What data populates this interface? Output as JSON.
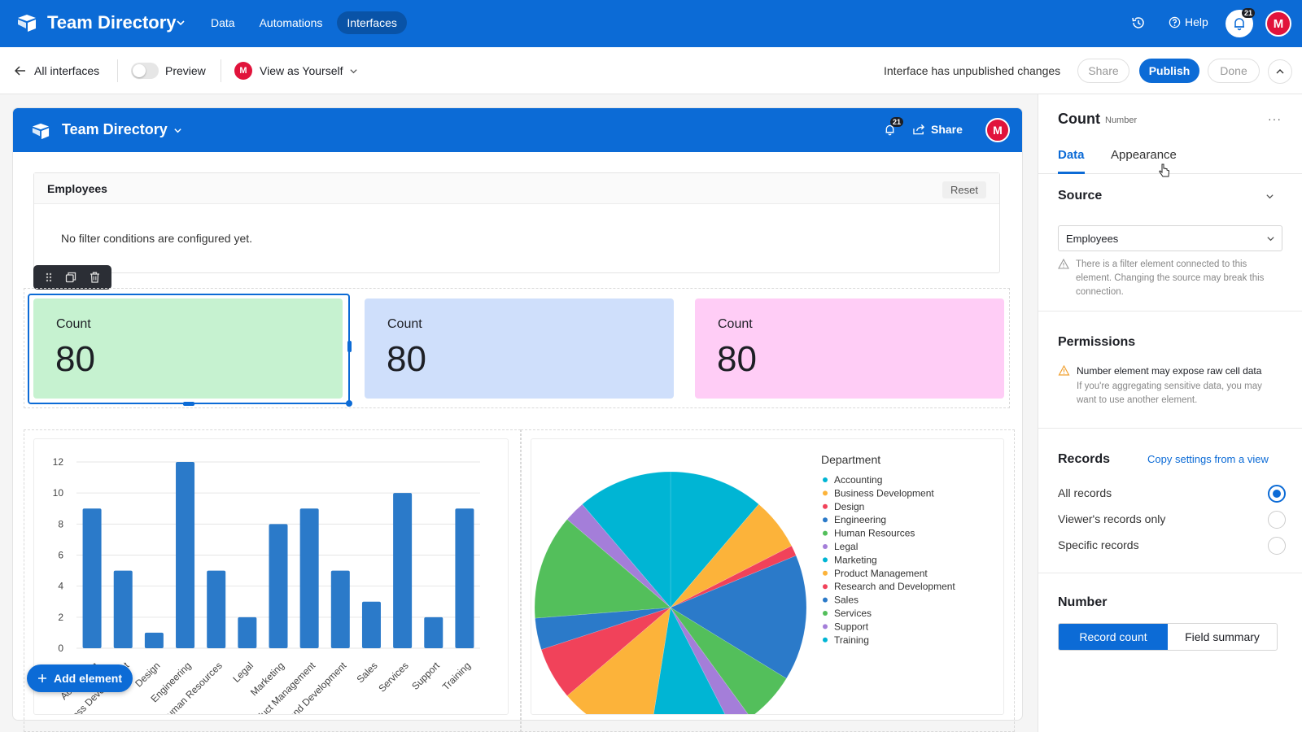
{
  "app": {
    "title": "Team Directory",
    "nav": [
      {
        "label": "Data",
        "active": false
      },
      {
        "label": "Automations",
        "active": false
      },
      {
        "label": "Interfaces",
        "active": true
      }
    ],
    "help_label": "Help",
    "notification_count": "21",
    "user_initial": "M"
  },
  "subbar": {
    "back_label": "All interfaces",
    "preview_label": "Preview",
    "view_as_label": "View as Yourself",
    "status_text": "Interface has unpublished changes",
    "share_label": "Share",
    "publish_label": "Publish",
    "done_label": "Done"
  },
  "canvas": {
    "title": "Team Directory",
    "notification_count": "21",
    "share_label": "Share",
    "user_initial": "M",
    "filter": {
      "title": "Employees",
      "reset_label": "Reset",
      "empty_text": "No filter conditions are configured yet."
    },
    "counts": [
      {
        "label": "Count",
        "value": "80",
        "color": "#c6f2d0"
      },
      {
        "label": "Count",
        "value": "80",
        "color": "#cfdffb"
      },
      {
        "label": "Count",
        "value": "80",
        "color": "#ffcdf6"
      }
    ],
    "add_element_label": "Add element"
  },
  "chart_data": [
    {
      "type": "bar",
      "categories": [
        "Accounting",
        "Business Development",
        "Design",
        "Engineering",
        "Human Resources",
        "Legal",
        "Marketing",
        "Product Management",
        "Research and Development",
        "Sales",
        "Services",
        "Support",
        "Training"
      ],
      "x_tick_labels": [
        "Accounting",
        "Business Development",
        "Design",
        "Engineering",
        "Human Resources",
        "Legal",
        "Marketing",
        "Product Management",
        "Research and Development",
        "Sales",
        "Services",
        "Support",
        "Training"
      ],
      "values": [
        9,
        5,
        1,
        12,
        5,
        2,
        8,
        9,
        5,
        3,
        10,
        2,
        9
      ],
      "ylim": [
        0,
        12
      ],
      "yticks": [
        0,
        2,
        4,
        6,
        8,
        10,
        12
      ],
      "color": "#2b7ac9",
      "grid": true
    },
    {
      "type": "pie",
      "legend_title": "Department",
      "legend_position": "right",
      "labels": [
        "Accounting",
        "Business Development",
        "Design",
        "Engineering",
        "Human Resources",
        "Legal",
        "Marketing",
        "Product Management",
        "Research and Development",
        "Sales",
        "Services",
        "Support",
        "Training"
      ],
      "values": [
        9,
        5,
        1,
        12,
        5,
        2,
        8,
        9,
        5,
        3,
        10,
        2,
        9
      ],
      "colors": [
        "#00b5d4",
        "#fcb33a",
        "#f1425a",
        "#2b7ac9",
        "#53bf5b",
        "#a47ed9",
        "#00b5d4",
        "#fcb33a",
        "#f1425a",
        "#2b7ac9",
        "#53bf5b",
        "#a47ed9",
        "#00b5d4"
      ]
    }
  ],
  "panel": {
    "title": "Count",
    "subtitle": "Number",
    "tabs": [
      {
        "label": "Data",
        "active": true
      },
      {
        "label": "Appearance",
        "active": false
      }
    ],
    "source": {
      "title": "Source",
      "value": "Employees",
      "warning": "There is a filter element connected to this element. Changing the source may break this connection."
    },
    "permissions": {
      "title": "Permissions",
      "warning_title": "Number element may expose raw cell data",
      "warning_text": "If you're aggregating sensitive data, you may want to use another element."
    },
    "records": {
      "title": "Records",
      "copy_link": "Copy settings from a view",
      "options": [
        {
          "label": "All records",
          "selected": true
        },
        {
          "label": "Viewer's records only",
          "selected": false
        },
        {
          "label": "Specific records",
          "selected": false
        }
      ]
    },
    "number": {
      "title": "Number",
      "options": [
        {
          "label": "Record count",
          "selected": true
        },
        {
          "label": "Field summary",
          "selected": false
        }
      ]
    }
  }
}
